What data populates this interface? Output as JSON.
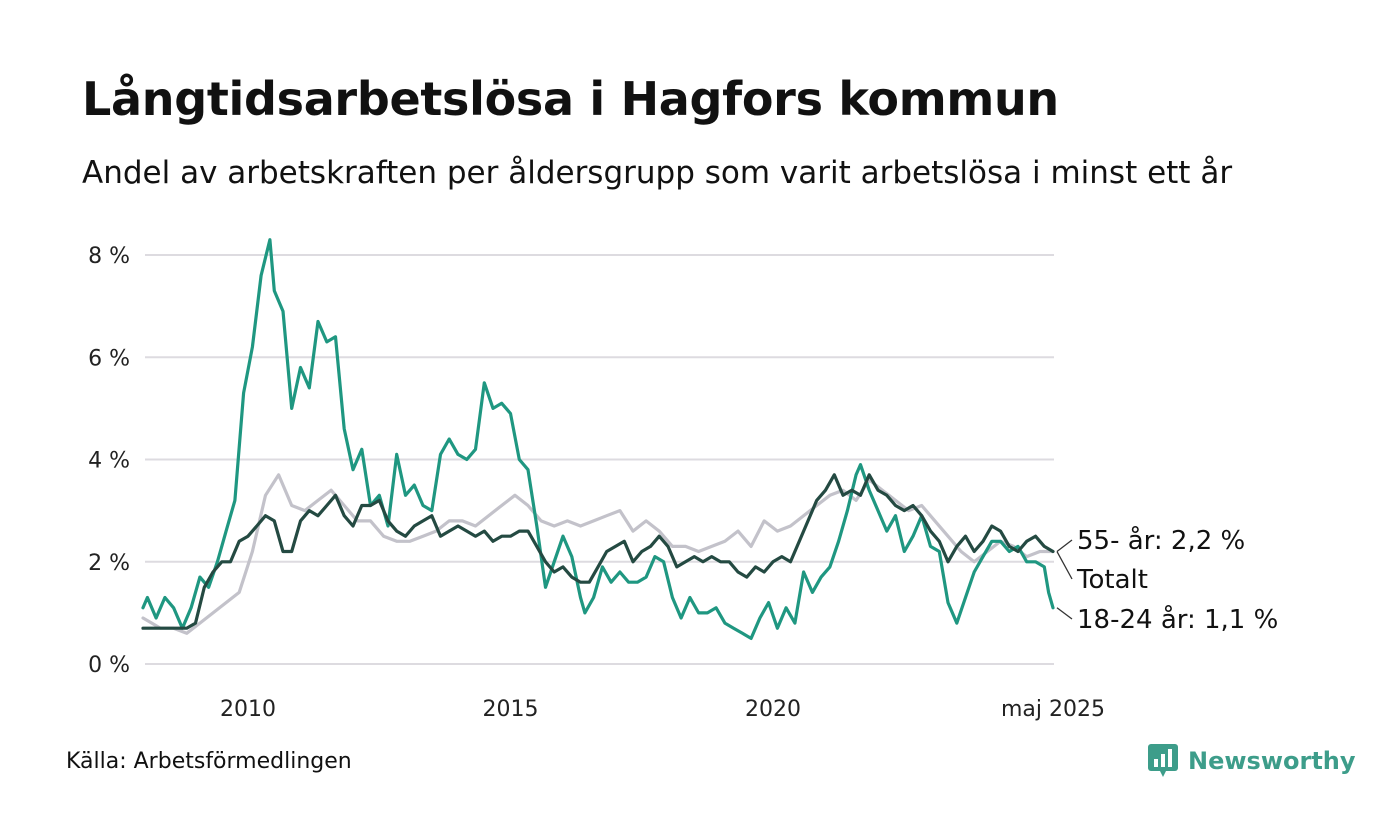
{
  "title": "Långtidsarbetslösa i Hagfors kommun",
  "subtitle": "Andel av arbetskraften per åldersgrupp som varit arbetslösa i minst ett år",
  "source": "Källa: Arbetsförmedlingen",
  "brand": {
    "name": "Newsworthy",
    "icon": "newsworthy-logo-icon",
    "color": "#3d9d8a"
  },
  "chart_data": {
    "type": "line",
    "x_range": [
      "2008-01",
      "2025-05"
    ],
    "ylim": [
      0,
      8.8
    ],
    "grid": true,
    "y_ticks": [
      0,
      2,
      4,
      6,
      8
    ],
    "y_tick_labels": [
      "0 %",
      "2 %",
      "4 %",
      "6 %",
      "8 %"
    ],
    "x_ticks": [
      {
        "date": "2010-01",
        "label": "2010"
      },
      {
        "date": "2015-01",
        "label": "2015"
      },
      {
        "date": "2020-01",
        "label": "2020"
      },
      {
        "date": "2025-05",
        "label": "maj 2025"
      }
    ],
    "series": [
      {
        "name": "55- år",
        "end_label": "55- år: 2,2 %",
        "color": "#c3c2ca",
        "points": [
          [
            "2008-01",
            0.9
          ],
          [
            "2008-03",
            0.8
          ],
          [
            "2008-05",
            0.7
          ],
          [
            "2008-08",
            0.7
          ],
          [
            "2008-11",
            0.6
          ],
          [
            "2009-02",
            0.8
          ],
          [
            "2009-05",
            1.0
          ],
          [
            "2009-08",
            1.2
          ],
          [
            "2009-11",
            1.4
          ],
          [
            "2010-02",
            2.2
          ],
          [
            "2010-05",
            3.3
          ],
          [
            "2010-08",
            3.7
          ],
          [
            "2010-11",
            3.1
          ],
          [
            "2011-02",
            3.0
          ],
          [
            "2011-05",
            3.2
          ],
          [
            "2011-08",
            3.4
          ],
          [
            "2011-11",
            3.1
          ],
          [
            "2012-02",
            2.8
          ],
          [
            "2012-05",
            2.8
          ],
          [
            "2012-08",
            2.5
          ],
          [
            "2012-11",
            2.4
          ],
          [
            "2013-02",
            2.4
          ],
          [
            "2013-05",
            2.5
          ],
          [
            "2013-08",
            2.6
          ],
          [
            "2013-11",
            2.8
          ],
          [
            "2014-02",
            2.8
          ],
          [
            "2014-05",
            2.7
          ],
          [
            "2014-08",
            2.9
          ],
          [
            "2014-11",
            3.1
          ],
          [
            "2015-02",
            3.3
          ],
          [
            "2015-05",
            3.1
          ],
          [
            "2015-08",
            2.8
          ],
          [
            "2015-11",
            2.7
          ],
          [
            "2016-02",
            2.8
          ],
          [
            "2016-05",
            2.7
          ],
          [
            "2016-08",
            2.8
          ],
          [
            "2016-11",
            2.9
          ],
          [
            "2017-02",
            3.0
          ],
          [
            "2017-05",
            2.6
          ],
          [
            "2017-08",
            2.8
          ],
          [
            "2017-11",
            2.6
          ],
          [
            "2018-02",
            2.3
          ],
          [
            "2018-05",
            2.3
          ],
          [
            "2018-08",
            2.2
          ],
          [
            "2018-11",
            2.3
          ],
          [
            "2019-02",
            2.4
          ],
          [
            "2019-05",
            2.6
          ],
          [
            "2019-08",
            2.3
          ],
          [
            "2019-11",
            2.8
          ],
          [
            "2020-02",
            2.6
          ],
          [
            "2020-05",
            2.7
          ],
          [
            "2020-08",
            2.9
          ],
          [
            "2020-11",
            3.1
          ],
          [
            "2021-02",
            3.3
          ],
          [
            "2021-05",
            3.4
          ],
          [
            "2021-08",
            3.2
          ],
          [
            "2021-11",
            3.6
          ],
          [
            "2022-02",
            3.4
          ],
          [
            "2022-05",
            3.2
          ],
          [
            "2022-08",
            3.0
          ],
          [
            "2022-11",
            3.1
          ],
          [
            "2023-02",
            2.8
          ],
          [
            "2023-05",
            2.5
          ],
          [
            "2023-08",
            2.2
          ],
          [
            "2023-11",
            2.0
          ],
          [
            "2024-02",
            2.2
          ],
          [
            "2024-05",
            2.4
          ],
          [
            "2024-08",
            2.3
          ],
          [
            "2024-11",
            2.1
          ],
          [
            "2025-02",
            2.2
          ],
          [
            "2025-05",
            2.2
          ]
        ]
      },
      {
        "name": "18-24 år",
        "end_label": "18-24 år: 1,1 %",
        "color": "#1f9781",
        "points": [
          [
            "2008-01",
            1.1
          ],
          [
            "2008-02",
            1.3
          ],
          [
            "2008-04",
            0.9
          ],
          [
            "2008-06",
            1.3
          ],
          [
            "2008-08",
            1.1
          ],
          [
            "2008-10",
            0.7
          ],
          [
            "2008-12",
            1.1
          ],
          [
            "2009-02",
            1.7
          ],
          [
            "2009-04",
            1.5
          ],
          [
            "2009-06",
            2.0
          ],
          [
            "2009-08",
            2.6
          ],
          [
            "2009-10",
            3.2
          ],
          [
            "2009-12",
            5.3
          ],
          [
            "2010-02",
            6.2
          ],
          [
            "2010-04",
            7.6
          ],
          [
            "2010-06",
            8.3
          ],
          [
            "2010-07",
            7.3
          ],
          [
            "2010-09",
            6.9
          ],
          [
            "2010-11",
            5.0
          ],
          [
            "2011-01",
            5.8
          ],
          [
            "2011-03",
            5.4
          ],
          [
            "2011-05",
            6.7
          ],
          [
            "2011-07",
            6.3
          ],
          [
            "2011-09",
            6.4
          ],
          [
            "2011-11",
            4.6
          ],
          [
            "2012-01",
            3.8
          ],
          [
            "2012-03",
            4.2
          ],
          [
            "2012-05",
            3.1
          ],
          [
            "2012-07",
            3.3
          ],
          [
            "2012-09",
            2.7
          ],
          [
            "2012-11",
            4.1
          ],
          [
            "2013-01",
            3.3
          ],
          [
            "2013-03",
            3.5
          ],
          [
            "2013-05",
            3.1
          ],
          [
            "2013-07",
            3.0
          ],
          [
            "2013-09",
            4.1
          ],
          [
            "2013-11",
            4.4
          ],
          [
            "2014-01",
            4.1
          ],
          [
            "2014-03",
            4.0
          ],
          [
            "2014-05",
            4.2
          ],
          [
            "2014-07",
            5.5
          ],
          [
            "2014-09",
            5.0
          ],
          [
            "2014-11",
            5.1
          ],
          [
            "2015-01",
            4.9
          ],
          [
            "2015-03",
            4.0
          ],
          [
            "2015-05",
            3.8
          ],
          [
            "2015-07",
            2.7
          ],
          [
            "2015-09",
            1.5
          ],
          [
            "2015-11",
            2.0
          ],
          [
            "2016-01",
            2.5
          ],
          [
            "2016-03",
            2.1
          ],
          [
            "2016-05",
            1.3
          ],
          [
            "2016-06",
            1.0
          ],
          [
            "2016-08",
            1.3
          ],
          [
            "2016-10",
            1.9
          ],
          [
            "2016-12",
            1.6
          ],
          [
            "2017-02",
            1.8
          ],
          [
            "2017-04",
            1.6
          ],
          [
            "2017-06",
            1.6
          ],
          [
            "2017-08",
            1.7
          ],
          [
            "2017-10",
            2.1
          ],
          [
            "2017-12",
            2.0
          ],
          [
            "2018-02",
            1.3
          ],
          [
            "2018-04",
            0.9
          ],
          [
            "2018-06",
            1.3
          ],
          [
            "2018-08",
            1.0
          ],
          [
            "2018-10",
            1.0
          ],
          [
            "2018-12",
            1.1
          ],
          [
            "2019-02",
            0.8
          ],
          [
            "2019-04",
            0.7
          ],
          [
            "2019-06",
            0.6
          ],
          [
            "2019-08",
            0.5
          ],
          [
            "2019-10",
            0.9
          ],
          [
            "2019-12",
            1.2
          ],
          [
            "2020-02",
            0.7
          ],
          [
            "2020-04",
            1.1
          ],
          [
            "2020-06",
            0.8
          ],
          [
            "2020-08",
            1.8
          ],
          [
            "2020-10",
            1.4
          ],
          [
            "2020-12",
            1.7
          ],
          [
            "2021-02",
            1.9
          ],
          [
            "2021-04",
            2.4
          ],
          [
            "2021-06",
            3.0
          ],
          [
            "2021-08",
            3.7
          ],
          [
            "2021-09",
            3.9
          ],
          [
            "2021-11",
            3.4
          ],
          [
            "2022-01",
            3.0
          ],
          [
            "2022-03",
            2.6
          ],
          [
            "2022-05",
            2.9
          ],
          [
            "2022-07",
            2.2
          ],
          [
            "2022-09",
            2.5
          ],
          [
            "2022-11",
            2.9
          ],
          [
            "2023-01",
            2.3
          ],
          [
            "2023-03",
            2.2
          ],
          [
            "2023-05",
            1.2
          ],
          [
            "2023-07",
            0.8
          ],
          [
            "2023-09",
            1.3
          ],
          [
            "2023-11",
            1.8
          ],
          [
            "2024-01",
            2.1
          ],
          [
            "2024-03",
            2.4
          ],
          [
            "2024-05",
            2.4
          ],
          [
            "2024-07",
            2.2
          ],
          [
            "2024-09",
            2.3
          ],
          [
            "2024-11",
            2.0
          ],
          [
            "2025-01",
            2.0
          ],
          [
            "2025-03",
            1.9
          ],
          [
            "2025-04",
            1.4
          ],
          [
            "2025-05",
            1.1
          ]
        ]
      },
      {
        "name": "Totalt",
        "end_label": "Totalt",
        "color": "#244a42",
        "points": [
          [
            "2008-01",
            0.7
          ],
          [
            "2008-03",
            0.7
          ],
          [
            "2008-05",
            0.7
          ],
          [
            "2008-07",
            0.7
          ],
          [
            "2008-09",
            0.7
          ],
          [
            "2008-11",
            0.7
          ],
          [
            "2009-01",
            0.8
          ],
          [
            "2009-03",
            1.5
          ],
          [
            "2009-05",
            1.8
          ],
          [
            "2009-07",
            2.0
          ],
          [
            "2009-09",
            2.0
          ],
          [
            "2009-11",
            2.4
          ],
          [
            "2010-01",
            2.5
          ],
          [
            "2010-03",
            2.7
          ],
          [
            "2010-05",
            2.9
          ],
          [
            "2010-07",
            2.8
          ],
          [
            "2010-09",
            2.2
          ],
          [
            "2010-11",
            2.2
          ],
          [
            "2011-01",
            2.8
          ],
          [
            "2011-03",
            3.0
          ],
          [
            "2011-05",
            2.9
          ],
          [
            "2011-07",
            3.1
          ],
          [
            "2011-09",
            3.3
          ],
          [
            "2011-11",
            2.9
          ],
          [
            "2012-01",
            2.7
          ],
          [
            "2012-03",
            3.1
          ],
          [
            "2012-05",
            3.1
          ],
          [
            "2012-07",
            3.2
          ],
          [
            "2012-09",
            2.8
          ],
          [
            "2012-11",
            2.6
          ],
          [
            "2013-01",
            2.5
          ],
          [
            "2013-03",
            2.7
          ],
          [
            "2013-05",
            2.8
          ],
          [
            "2013-07",
            2.9
          ],
          [
            "2013-09",
            2.5
          ],
          [
            "2013-11",
            2.6
          ],
          [
            "2014-01",
            2.7
          ],
          [
            "2014-03",
            2.6
          ],
          [
            "2014-05",
            2.5
          ],
          [
            "2014-07",
            2.6
          ],
          [
            "2014-09",
            2.4
          ],
          [
            "2014-11",
            2.5
          ],
          [
            "2015-01",
            2.5
          ],
          [
            "2015-03",
            2.6
          ],
          [
            "2015-05",
            2.6
          ],
          [
            "2015-07",
            2.3
          ],
          [
            "2015-09",
            2.0
          ],
          [
            "2015-11",
            1.8
          ],
          [
            "2016-01",
            1.9
          ],
          [
            "2016-03",
            1.7
          ],
          [
            "2016-05",
            1.6
          ],
          [
            "2016-07",
            1.6
          ],
          [
            "2016-09",
            1.9
          ],
          [
            "2016-11",
            2.2
          ],
          [
            "2017-01",
            2.3
          ],
          [
            "2017-03",
            2.4
          ],
          [
            "2017-05",
            2.0
          ],
          [
            "2017-07",
            2.2
          ],
          [
            "2017-09",
            2.3
          ],
          [
            "2017-11",
            2.5
          ],
          [
            "2018-01",
            2.3
          ],
          [
            "2018-03",
            1.9
          ],
          [
            "2018-05",
            2.0
          ],
          [
            "2018-07",
            2.1
          ],
          [
            "2018-09",
            2.0
          ],
          [
            "2018-11",
            2.1
          ],
          [
            "2019-01",
            2.0
          ],
          [
            "2019-03",
            2.0
          ],
          [
            "2019-05",
            1.8
          ],
          [
            "2019-07",
            1.7
          ],
          [
            "2019-09",
            1.9
          ],
          [
            "2019-11",
            1.8
          ],
          [
            "2020-01",
            2.0
          ],
          [
            "2020-03",
            2.1
          ],
          [
            "2020-05",
            2.0
          ],
          [
            "2020-07",
            2.4
          ],
          [
            "2020-09",
            2.8
          ],
          [
            "2020-11",
            3.2
          ],
          [
            "2021-01",
            3.4
          ],
          [
            "2021-03",
            3.7
          ],
          [
            "2021-05",
            3.3
          ],
          [
            "2021-07",
            3.4
          ],
          [
            "2021-09",
            3.3
          ],
          [
            "2021-11",
            3.7
          ],
          [
            "2022-01",
            3.4
          ],
          [
            "2022-03",
            3.3
          ],
          [
            "2022-05",
            3.1
          ],
          [
            "2022-07",
            3.0
          ],
          [
            "2022-09",
            3.1
          ],
          [
            "2022-11",
            2.9
          ],
          [
            "2023-01",
            2.6
          ],
          [
            "2023-03",
            2.4
          ],
          [
            "2023-05",
            2.0
          ],
          [
            "2023-07",
            2.3
          ],
          [
            "2023-09",
            2.5
          ],
          [
            "2023-11",
            2.2
          ],
          [
            "2024-01",
            2.4
          ],
          [
            "2024-03",
            2.7
          ],
          [
            "2024-05",
            2.6
          ],
          [
            "2024-07",
            2.3
          ],
          [
            "2024-09",
            2.2
          ],
          [
            "2024-11",
            2.4
          ],
          [
            "2025-01",
            2.5
          ],
          [
            "2025-03",
            2.3
          ],
          [
            "2025-05",
            2.2
          ]
        ]
      }
    ]
  }
}
